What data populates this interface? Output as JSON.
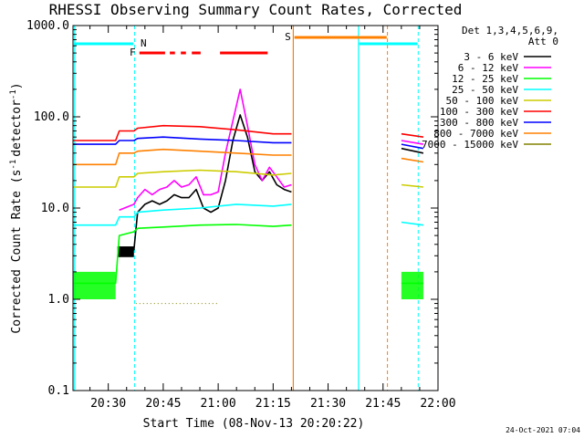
{
  "chart_data": {
    "type": "line",
    "title": "RHESSI Observing Summary Count Rates, Corrected",
    "xlabel": "Start Time (08-Nov-13 20:20:22)",
    "ylabel_main": "Corrected Count Rate (s",
    "ylabel_unit": "detector",
    "ylabel_close": ")",
    "ylabel_sup": "-1",
    "y_scale": "log",
    "ylim": [
      0.1,
      1000
    ],
    "y_ticks": [
      {
        "value": 0.1,
        "label": "0.1"
      },
      {
        "value": 1,
        "label": "1.0"
      },
      {
        "value": 10,
        "label": "10.0"
      },
      {
        "value": 100,
        "label": "100.0"
      },
      {
        "value": 1000,
        "label": "1000.0"
      }
    ],
    "xlim_minutes": [
      20.37,
      120
    ],
    "x_ticks": [
      {
        "value": 30,
        "label": "20:30"
      },
      {
        "value": 45,
        "label": "20:45"
      },
      {
        "value": 60,
        "label": "21:00"
      },
      {
        "value": 75,
        "label": "21:15"
      },
      {
        "value": 90,
        "label": "21:30"
      },
      {
        "value": 105,
        "label": "21:45"
      },
      {
        "value": 120,
        "label": "22:00"
      }
    ],
    "legend_header": [
      "Det 1,3,4,5,6,9,",
      "Att 0"
    ],
    "legend_position": "top-right",
    "series": [
      {
        "name": "3 - 6 keV",
        "color": "#000000",
        "values": [
          [
            20.4,
            null
          ],
          [
            32,
            null
          ],
          [
            33,
            3
          ],
          [
            37,
            3.5
          ],
          [
            38,
            9
          ],
          [
            40,
            11
          ],
          [
            42,
            12
          ],
          [
            44,
            11
          ],
          [
            46,
            12
          ],
          [
            48,
            14
          ],
          [
            50,
            13
          ],
          [
            52,
            13
          ],
          [
            54,
            16
          ],
          [
            56,
            10
          ],
          [
            58,
            9
          ],
          [
            60,
            10
          ],
          [
            62,
            20
          ],
          [
            64,
            55
          ],
          [
            66,
            105
          ],
          [
            68,
            60
          ],
          [
            70,
            25
          ],
          [
            72,
            20
          ],
          [
            74,
            25
          ],
          [
            76,
            18
          ],
          [
            78,
            16
          ],
          [
            80,
            15
          ],
          [
            80.5,
            null
          ],
          [
            109,
            null
          ],
          [
            110,
            45
          ],
          [
            116,
            40
          ]
        ]
      },
      {
        "name": "6 - 12 keV",
        "color": "#ff00ff",
        "values": [
          [
            32,
            null
          ],
          [
            33,
            9.5
          ],
          [
            37,
            11
          ],
          [
            38,
            13
          ],
          [
            40,
            16
          ],
          [
            42,
            14
          ],
          [
            44,
            16
          ],
          [
            46,
            17
          ],
          [
            48,
            20
          ],
          [
            50,
            17
          ],
          [
            52,
            18
          ],
          [
            54,
            22
          ],
          [
            56,
            14
          ],
          [
            58,
            14
          ],
          [
            60,
            15
          ],
          [
            62,
            40
          ],
          [
            64,
            90
          ],
          [
            66,
            200
          ],
          [
            68,
            80
          ],
          [
            70,
            30
          ],
          [
            72,
            20
          ],
          [
            74,
            28
          ],
          [
            76,
            22
          ],
          [
            78,
            17
          ],
          [
            80,
            18
          ],
          [
            80.5,
            null
          ],
          [
            109,
            null
          ],
          [
            110,
            55
          ],
          [
            116,
            50
          ]
        ]
      },
      {
        "name": "12 - 25 keV",
        "color": "#00ff00",
        "values": [
          [
            20.4,
            1.5
          ],
          [
            32,
            1.5
          ],
          [
            33,
            5
          ],
          [
            37,
            5.5
          ],
          [
            38,
            6
          ],
          [
            45,
            6.2
          ],
          [
            55,
            6.5
          ],
          [
            65,
            6.6
          ],
          [
            75,
            6.3
          ],
          [
            80,
            6.5
          ],
          [
            80.5,
            null
          ],
          [
            109,
            null
          ],
          [
            110,
            1.5
          ],
          [
            116,
            1.5
          ]
        ]
      },
      {
        "name": "25 - 50 keV",
        "color": "#00ffff",
        "values": [
          [
            20.4,
            6.5
          ],
          [
            32,
            6.5
          ],
          [
            33,
            8
          ],
          [
            37,
            8
          ],
          [
            38,
            9
          ],
          [
            45,
            9.5
          ],
          [
            55,
            10
          ],
          [
            65,
            11
          ],
          [
            75,
            10.5
          ],
          [
            80,
            11
          ],
          [
            80.5,
            null
          ],
          [
            109,
            null
          ],
          [
            110,
            7
          ],
          [
            116,
            6.5
          ]
        ]
      },
      {
        "name": "50 - 100 keV",
        "color": "#cccc00",
        "values": [
          [
            20.4,
            17
          ],
          [
            32,
            17
          ],
          [
            33,
            22
          ],
          [
            37,
            22
          ],
          [
            38,
            24
          ],
          [
            45,
            25
          ],
          [
            55,
            26
          ],
          [
            65,
            25
          ],
          [
            75,
            23
          ],
          [
            80,
            24
          ],
          [
            80.5,
            null
          ],
          [
            109,
            null
          ],
          [
            110,
            18
          ],
          [
            116,
            17
          ]
        ]
      },
      {
        "name": "100 - 300 keV",
        "color": "#ff0000",
        "values": [
          [
            20.4,
            55
          ],
          [
            32,
            55
          ],
          [
            33,
            70
          ],
          [
            37,
            70
          ],
          [
            38,
            75
          ],
          [
            45,
            80
          ],
          [
            55,
            78
          ],
          [
            65,
            72
          ],
          [
            75,
            65
          ],
          [
            80,
            65
          ],
          [
            80.5,
            null
          ],
          [
            109,
            null
          ],
          [
            110,
            65
          ],
          [
            116,
            60
          ]
        ]
      },
      {
        "name": "300 - 800 keV",
        "color": "#0000ff",
        "values": [
          [
            20.4,
            50
          ],
          [
            32,
            50
          ],
          [
            33,
            55
          ],
          [
            37,
            55
          ],
          [
            38,
            58
          ],
          [
            45,
            60
          ],
          [
            55,
            57
          ],
          [
            65,
            55
          ],
          [
            75,
            52
          ],
          [
            80,
            52
          ],
          [
            80.5,
            null
          ],
          [
            109,
            null
          ],
          [
            110,
            50
          ],
          [
            116,
            45
          ]
        ]
      },
      {
        "name": "800 - 7000 keV",
        "color": "#ff8000",
        "values": [
          [
            20.4,
            30
          ],
          [
            32,
            30
          ],
          [
            33,
            40
          ],
          [
            37,
            40
          ],
          [
            38,
            42
          ],
          [
            45,
            44
          ],
          [
            55,
            42
          ],
          [
            65,
            40
          ],
          [
            75,
            38
          ],
          [
            80,
            38
          ],
          [
            80.5,
            null
          ],
          [
            109,
            null
          ],
          [
            110,
            35
          ],
          [
            116,
            32
          ]
        ]
      },
      {
        "name": "7000 - 15000 keV",
        "color": "#808000",
        "values": [
          [
            37.5,
            0.9
          ],
          [
            60,
            0.9
          ]
        ]
      }
    ],
    "annotations": [
      {
        "text": "N",
        "color": "#00ffff"
      },
      {
        "text": "F",
        "color": "#ff0000"
      },
      {
        "text": "S",
        "color": "#ff8000"
      }
    ],
    "footer": "24-Oct-2021 07:04"
  }
}
